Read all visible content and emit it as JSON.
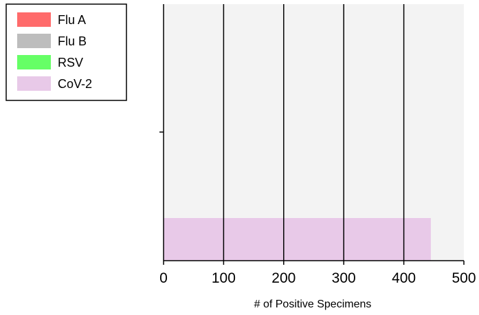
{
  "chart_data": {
    "type": "bar",
    "orientation": "horizontal",
    "xlabel": "# of Positive Specimens",
    "xlim": [
      0,
      500
    ],
    "xticks": [
      "0",
      "100",
      "200",
      "300",
      "400",
      "500"
    ],
    "grid": "vertical",
    "legend_position": "top-left",
    "series": [
      {
        "name": "Flu A",
        "color": "#ff6b6b",
        "value": 0
      },
      {
        "name": "Flu B",
        "color": "#bdbdbd",
        "value": 0
      },
      {
        "name": "RSV",
        "color": "#66ff66",
        "value": 0
      },
      {
        "name": "CoV-2",
        "color": "#e8c9e8",
        "value": 445
      }
    ],
    "plot_background": "#f3f3f3"
  }
}
